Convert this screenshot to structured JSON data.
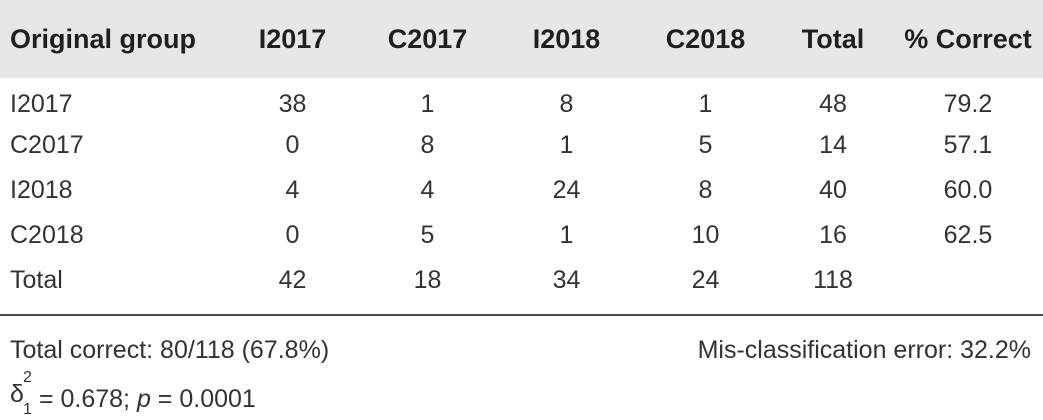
{
  "table": {
    "headers": [
      "Original group",
      "I2017",
      "C2017",
      "I2018",
      "C2018",
      "Total",
      "% Correct"
    ],
    "rows": [
      [
        "I2017",
        "38",
        "1",
        "8",
        "1",
        "48",
        "79.2"
      ],
      [
        "C2017",
        "0",
        "8",
        "1",
        "5",
        "14",
        "57.1"
      ],
      [
        "I2018",
        "4",
        "4",
        "24",
        "8",
        "40",
        "60.0"
      ],
      [
        "C2018",
        "0",
        "5",
        "1",
        "10",
        "16",
        "62.5"
      ],
      [
        "Total",
        "42",
        "18",
        "34",
        "24",
        "118",
        ""
      ]
    ]
  },
  "footer": {
    "total_correct": "Total correct: 80/118 (67.8%)",
    "misclassification": "Mis-classification error: 32.2%",
    "stat": {
      "symbol": "δ",
      "superscript": "2",
      "subscript": "1",
      "value_text": " = 0.678; ",
      "p_label": "p",
      "p_value_text": " = 0.0001"
    }
  }
}
